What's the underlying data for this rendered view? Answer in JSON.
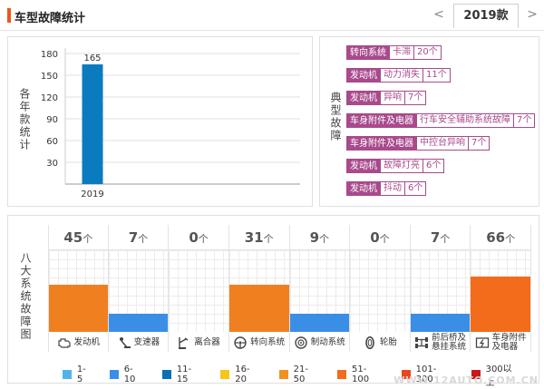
{
  "header": {
    "title": "车型故障统计",
    "prev_arrow": "<",
    "next_arrow": ">",
    "active_year": "2019款"
  },
  "year_chart": {
    "side_label": "各年款统计"
  },
  "chart_data": {
    "type": "bar",
    "categories": [
      "2019"
    ],
    "values": [
      165
    ],
    "title": "",
    "xlabel": "",
    "ylabel": "各年款统计",
    "ylim": [
      0,
      180
    ],
    "yticks": [
      30,
      60,
      90,
      120,
      150,
      180
    ],
    "grid": true,
    "bar_color": "#0a7bbf"
  },
  "typical_faults": {
    "side_label": "典型故障",
    "items": [
      {
        "system": "转向系统",
        "desc": "卡滞",
        "count": "20个"
      },
      {
        "system": "发动机",
        "desc": "动力消失",
        "count": "11个"
      },
      {
        "system": "发动机",
        "desc": "异响",
        "count": "7个"
      },
      {
        "system": "车身附件及电器",
        "desc": "行车安全辅助系统故障",
        "count": "7个"
      },
      {
        "system": "车身附件及电器",
        "desc": "中控台异响",
        "count": "7个"
      },
      {
        "system": "发动机",
        "desc": "故障灯亮",
        "count": "6个"
      },
      {
        "system": "发动机",
        "desc": "抖动",
        "count": "6个"
      }
    ]
  },
  "systems": {
    "side_label": "八大系统故障图",
    "unit": "个",
    "items": [
      {
        "name": "发动机",
        "count": "45",
        "level": 0.58,
        "color": "#f07f1f",
        "icon": "engine-icon"
      },
      {
        "name": "变速器",
        "count": "7",
        "level": 0.22,
        "color": "#3a8ee6",
        "icon": "gearshift-icon"
      },
      {
        "name": "离合器",
        "count": "0",
        "level": 0,
        "color": "#3a8ee6",
        "icon": "clutch-pedal-icon"
      },
      {
        "name": "转向系统",
        "count": "31",
        "level": 0.58,
        "color": "#f07f1f",
        "icon": "steering-wheel-icon"
      },
      {
        "name": "制动系统",
        "count": "9",
        "level": 0.22,
        "color": "#3a8ee6",
        "icon": "brake-disc-icon"
      },
      {
        "name": "轮胎",
        "count": "0",
        "level": 0,
        "color": "#3a8ee6",
        "icon": "tire-icon"
      },
      {
        "name": "前后桥及悬挂系统",
        "name_line1": "前后桥及",
        "name_line2": "悬挂系统",
        "count": "7",
        "level": 0.22,
        "color": "#3a8ee6",
        "icon": "axle-icon"
      },
      {
        "name": "车身附件及电器",
        "name_line1": "车身附件",
        "name_line2": "及电器",
        "count": "66",
        "level": 0.68,
        "color": "#f36c1b",
        "icon": "body-electrics-icon"
      }
    ]
  },
  "legend": [
    {
      "label": "1-5",
      "color": "#4fb4ea"
    },
    {
      "label": "6-10",
      "color": "#3a8ee6"
    },
    {
      "label": "11-15",
      "color": "#0a6fb5"
    },
    {
      "label": "16-20",
      "color": "#f5c518"
    },
    {
      "label": "21-50",
      "color": "#f0921f"
    },
    {
      "label": "51-100",
      "color": "#f36c1b"
    },
    {
      "label": "101-300",
      "color": "#e8481c"
    },
    {
      "label": "300以上",
      "color": "#c8191c"
    }
  ],
  "watermark": "WWW.12AUTO.COM.CN"
}
